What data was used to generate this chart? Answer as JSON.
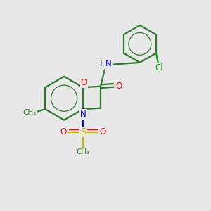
{
  "background_color": "#e8e8e8",
  "bond_color": "#2d7a2d",
  "atom_colors": {
    "O": "#ff0000",
    "N": "#0000ff",
    "S": "#bbbb00",
    "Cl": "#00aa00",
    "C": "#2d7a2d",
    "H": "#708090"
  },
  "bond_width": 1.6,
  "figsize": [
    3.0,
    3.0
  ],
  "dpi": 100,
  "xlim": [
    0,
    10
  ],
  "ylim": [
    0,
    10
  ]
}
